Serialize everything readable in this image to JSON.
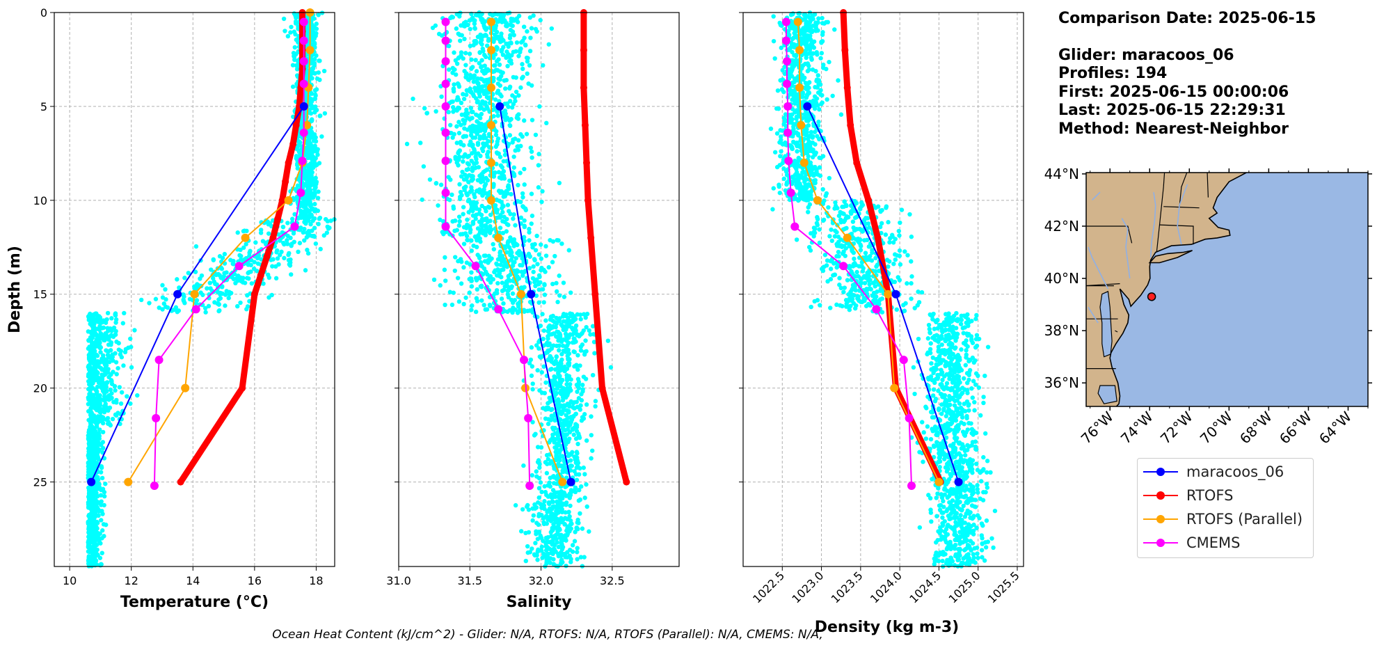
{
  "footnote": "Ocean Heat Content (kJ/cm^2) - Glider: N/A,  RTOFS: N/A,  RTOFS (Parallel): N/A,  CMEMS: N/A,",
  "info": {
    "comparison_date": "Comparison Date: 2025-06-15",
    "glider": "Glider: maracoos_06",
    "profiles": "Profiles: 194",
    "first": "First: 2025-06-15 00:00:06",
    "last": "Last: 2025-06-15 22:29:31",
    "method": "Method: Nearest-Neighbor"
  },
  "legend": [
    {
      "label": "maracoos_06",
      "color": "#0000ff"
    },
    {
      "label": "RTOFS",
      "color": "#ff0000"
    },
    {
      "label": "RTOFS (Parallel)",
      "color": "#ffa500"
    },
    {
      "label": "CMEMS",
      "color": "#ff00ff"
    }
  ],
  "map": {
    "lat_labels": [
      "44°N",
      "42°N",
      "40°N",
      "38°N",
      "36°N"
    ],
    "lon_labels": [
      "76°W",
      "74°W",
      "72°W",
      "70°W",
      "68°W",
      "66°W",
      "64°W"
    ],
    "land_color": "#d2b48c",
    "ocean_color": "#9ab8e4",
    "glider_position": {
      "lon": -73.9,
      "lat": 39.3
    }
  },
  "chart_data": [
    {
      "type": "scatter",
      "ylabel": "Depth (m)",
      "xlabel": "Temperature (°C)",
      "xlim": [
        9.5,
        18.6
      ],
      "ylim": [
        29.5,
        0
      ],
      "xticks": [
        "10",
        "12",
        "14",
        "16",
        "18"
      ],
      "yticks": [
        "0",
        "5",
        "10",
        "15",
        "20",
        "25"
      ],
      "grid": true,
      "glider_scatter_color": "#00ffff",
      "series": [
        {
          "name": "maracoos_06",
          "color": "#0000ff",
          "depth": [
            5,
            15,
            25
          ],
          "values": [
            17.6,
            13.5,
            10.7
          ]
        },
        {
          "name": "RTOFS",
          "color": "#ff0000",
          "depth": [
            0,
            1,
            2,
            3,
            4,
            5,
            6,
            7,
            8,
            9,
            10,
            11,
            12,
            13,
            14,
            15,
            20,
            25
          ],
          "values": [
            17.55,
            17.55,
            17.55,
            17.55,
            17.5,
            17.45,
            17.35,
            17.25,
            17.1,
            17.0,
            16.9,
            16.75,
            16.6,
            16.4,
            16.2,
            16.0,
            15.6,
            13.6
          ]
        },
        {
          "name": "RTOFS (Parallel)",
          "color": "#ffa500",
          "depth": [
            0,
            2,
            4,
            6,
            8,
            10,
            12,
            15,
            20,
            25
          ],
          "values": [
            17.8,
            17.8,
            17.75,
            17.7,
            17.55,
            17.1,
            15.7,
            14.05,
            13.75,
            11.9
          ]
        },
        {
          "name": "CMEMS",
          "color": "#ff00ff",
          "depth": [
            0.5,
            1.5,
            2.6,
            3.8,
            5.0,
            6.4,
            7.9,
            9.6,
            11.4,
            13.5,
            15.8,
            18.5,
            21.6,
            25.2
          ],
          "values": [
            17.6,
            17.6,
            17.6,
            17.6,
            17.6,
            17.6,
            17.55,
            17.5,
            17.3,
            15.5,
            14.1,
            12.9,
            12.8,
            12.75
          ]
        }
      ]
    },
    {
      "type": "scatter",
      "xlabel": "Salinity",
      "xlim": [
        31.0,
        32.97
      ],
      "ylim": [
        29.5,
        0
      ],
      "xticks": [
        "31.0",
        "31.5",
        "32.0",
        "32.5"
      ],
      "grid": true,
      "glider_scatter_color": "#00ffff",
      "series": [
        {
          "name": "maracoos_06",
          "color": "#0000ff",
          "depth": [
            5,
            15,
            25
          ],
          "values": [
            31.71,
            31.93,
            32.21
          ]
        },
        {
          "name": "RTOFS",
          "color": "#ff0000",
          "depth": [
            0,
            2,
            4,
            6,
            8,
            10,
            12,
            15,
            20,
            25
          ],
          "values": [
            32.3,
            32.3,
            32.3,
            32.31,
            32.32,
            32.33,
            32.35,
            32.38,
            32.43,
            32.6
          ]
        },
        {
          "name": "RTOFS (Parallel)",
          "color": "#ffa500",
          "depth": [
            0.5,
            2,
            4,
            6,
            8,
            10,
            12,
            15,
            20,
            25
          ],
          "values": [
            31.65,
            31.65,
            31.65,
            31.65,
            31.65,
            31.65,
            31.7,
            31.86,
            31.89,
            32.15
          ]
        },
        {
          "name": "CMEMS",
          "color": "#ff00ff",
          "depth": [
            0.5,
            1.5,
            2.6,
            3.8,
            5.0,
            6.4,
            7.9,
            9.6,
            11.4,
            13.5,
            15.8,
            18.5,
            21.6,
            25.2
          ],
          "values": [
            31.33,
            31.33,
            31.33,
            31.33,
            31.33,
            31.33,
            31.33,
            31.33,
            31.33,
            31.54,
            31.7,
            31.88,
            31.91,
            31.92
          ]
        }
      ]
    },
    {
      "type": "scatter",
      "xlabel": "Density (kg m-3)",
      "xlim": [
        1022.0,
        1025.58
      ],
      "ylim": [
        29.5,
        0
      ],
      "xticks": [
        "1022.5",
        "1023.0",
        "1023.5",
        "1024.0",
        "1024.5",
        "1025.0",
        "1025.5"
      ],
      "grid": true,
      "glider_scatter_color": "#00ffff",
      "series": [
        {
          "name": "maracoos_06",
          "color": "#0000ff",
          "depth": [
            5,
            15,
            25
          ],
          "values": [
            1022.82,
            1023.95,
            1024.75
          ]
        },
        {
          "name": "RTOFS",
          "color": "#ff0000",
          "depth": [
            0,
            2,
            4,
            6,
            8,
            10,
            12,
            15,
            20,
            25
          ],
          "values": [
            1023.28,
            1023.3,
            1023.33,
            1023.37,
            1023.45,
            1023.6,
            1023.72,
            1023.85,
            1023.95,
            1024.52
          ]
        },
        {
          "name": "RTOFS (Parallel)",
          "color": "#ffa500",
          "depth": [
            0.5,
            2,
            4,
            6,
            8,
            10,
            12,
            15,
            20,
            25
          ],
          "values": [
            1022.7,
            1022.72,
            1022.72,
            1022.74,
            1022.78,
            1022.95,
            1023.33,
            1023.85,
            1023.93,
            1024.5
          ]
        },
        {
          "name": "CMEMS",
          "color": "#ff00ff",
          "depth": [
            0.5,
            1.5,
            2.6,
            3.8,
            5.0,
            6.4,
            7.9,
            9.6,
            11.4,
            13.5,
            15.8,
            18.5,
            21.6,
            25.2
          ],
          "values": [
            1022.55,
            1022.55,
            1022.56,
            1022.56,
            1022.57,
            1022.57,
            1022.58,
            1022.61,
            1022.66,
            1023.28,
            1023.7,
            1024.05,
            1024.12,
            1024.15
          ]
        }
      ]
    }
  ]
}
